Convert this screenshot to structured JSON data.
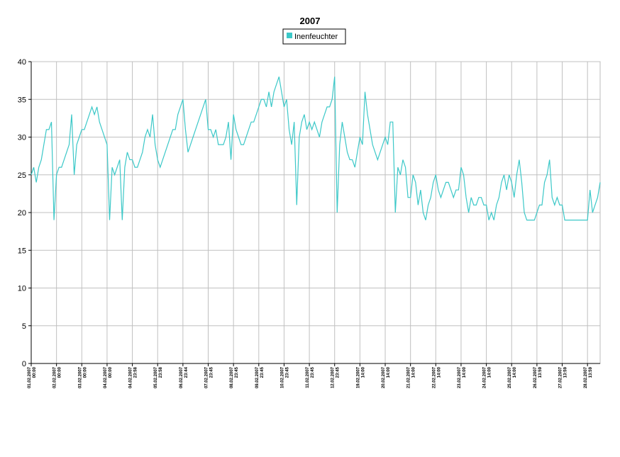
{
  "chart_data": {
    "type": "line",
    "title": "2007",
    "categories": [
      [
        "01.02.2007",
        "00:00"
      ],
      null,
      null,
      null,
      null,
      null,
      null,
      null,
      null,
      null,
      [
        "02.02.2007",
        "00:00"
      ],
      null,
      null,
      null,
      null,
      null,
      null,
      null,
      null,
      null,
      [
        "03.02.2007",
        "00:00"
      ],
      null,
      null,
      null,
      null,
      null,
      null,
      null,
      null,
      null,
      [
        "04.02.2007",
        "00:00"
      ],
      null,
      null,
      null,
      null,
      null,
      null,
      null,
      null,
      null,
      [
        "04.02.2007",
        "23:58"
      ],
      null,
      null,
      null,
      null,
      null,
      null,
      null,
      null,
      null,
      [
        "05.02.2007",
        "23:58"
      ],
      null,
      null,
      null,
      null,
      null,
      null,
      null,
      null,
      null,
      [
        "06.02.2007",
        "23:44"
      ],
      null,
      null,
      null,
      null,
      null,
      null,
      null,
      null,
      null,
      [
        "07.02.2007",
        "23:45"
      ],
      null,
      null,
      null,
      null,
      null,
      null,
      null,
      null,
      null,
      [
        "08.02.2007",
        "23:45"
      ],
      null,
      null,
      null,
      null,
      null,
      null,
      null,
      null,
      null,
      [
        "09.02.2007",
        "23:45"
      ],
      null,
      null,
      null,
      null,
      null,
      null,
      null,
      null,
      null,
      [
        "10.02.2007",
        "23:45"
      ],
      null,
      null,
      null,
      null,
      null,
      null,
      null,
      null,
      null,
      [
        "11.02.2007",
        "23:45"
      ],
      null,
      null,
      null,
      null,
      null,
      null,
      null,
      null,
      null,
      [
        "12.02.2007",
        "23:45"
      ],
      null,
      null,
      null,
      null,
      null,
      null,
      null,
      null,
      null,
      [
        "19.02.2007",
        "14:00"
      ],
      null,
      null,
      null,
      null,
      null,
      null,
      null,
      null,
      null,
      [
        "20.02.2007",
        "14:00"
      ],
      null,
      null,
      null,
      null,
      null,
      null,
      null,
      null,
      null,
      [
        "21.02.2007",
        "14:00"
      ],
      null,
      null,
      null,
      null,
      null,
      null,
      null,
      null,
      null,
      [
        "22.02.2007",
        "14:00"
      ],
      null,
      null,
      null,
      null,
      null,
      null,
      null,
      null,
      null,
      [
        "23.02.2007",
        "14:00"
      ],
      null,
      null,
      null,
      null,
      null,
      null,
      null,
      null,
      null,
      [
        "24.02.2007",
        "14:00"
      ],
      null,
      null,
      null,
      null,
      null,
      null,
      null,
      null,
      null,
      [
        "25.02.2007",
        "14:00"
      ],
      null,
      null,
      null,
      null,
      null,
      null,
      null,
      null,
      null,
      [
        "26.02.2007",
        "13:59"
      ],
      null,
      null,
      null,
      null,
      null,
      null,
      null,
      null,
      null,
      [
        "27.02.2007",
        "13:59"
      ],
      null,
      null,
      null,
      null,
      null,
      null,
      null,
      null,
      null,
      [
        "28.02.2007",
        "13:59"
      ],
      null,
      null,
      null,
      null,
      null
    ],
    "series": [
      {
        "name": "Inenfeuchter",
        "color": "#3cc8c8",
        "values": [
          25,
          26,
          24,
          26,
          27,
          29,
          31,
          31,
          32,
          19,
          25,
          26,
          26,
          27,
          28,
          29,
          33,
          25,
          29,
          30,
          31,
          31,
          32,
          33,
          34,
          33,
          34,
          32,
          31,
          30,
          29,
          19,
          26,
          25,
          26,
          27,
          19,
          26,
          28,
          27,
          27,
          26,
          26,
          27,
          28,
          30,
          31,
          30,
          33,
          29,
          27,
          26,
          27,
          28,
          29,
          30,
          31,
          31,
          33,
          34,
          35,
          31,
          28,
          29,
          30,
          31,
          32,
          33,
          34,
          35,
          31,
          31,
          30,
          31,
          29,
          29,
          29,
          30,
          32,
          27,
          33,
          31,
          30,
          29,
          29,
          30,
          31,
          32,
          32,
          33,
          34,
          35,
          35,
          34,
          36,
          34,
          36,
          37,
          38,
          36,
          34,
          35,
          31,
          29,
          32,
          21,
          30,
          32,
          33,
          31,
          32,
          31,
          32,
          31,
          30,
          32,
          33,
          34,
          34,
          35,
          38,
          20,
          29,
          32,
          30,
          28,
          27,
          27,
          26,
          28,
          30,
          29,
          36,
          33,
          31,
          29,
          28,
          27,
          28,
          29,
          30,
          29,
          32,
          32,
          20,
          26,
          25,
          27,
          26,
          22,
          22,
          25,
          24,
          21,
          23,
          20,
          19,
          21,
          22,
          24,
          25,
          23,
          22,
          23,
          24,
          24,
          23,
          22,
          23,
          23,
          26,
          25,
          22,
          20,
          22,
          21,
          21,
          22,
          22,
          21,
          21,
          19,
          20,
          19,
          21,
          22,
          24,
          25,
          23,
          25,
          24,
          22,
          25,
          27,
          24,
          20,
          19,
          19,
          19,
          19,
          20,
          21,
          21,
          24,
          25,
          27,
          22,
          21,
          22,
          21,
          21,
          19,
          19,
          19,
          19,
          19,
          19,
          19,
          19,
          19,
          19,
          23,
          20,
          21,
          22,
          24
        ]
      }
    ],
    "ylim": [
      0,
      40
    ],
    "yticks": [
      0,
      5,
      10,
      15,
      20,
      25,
      30,
      35,
      40
    ],
    "grid": true
  }
}
